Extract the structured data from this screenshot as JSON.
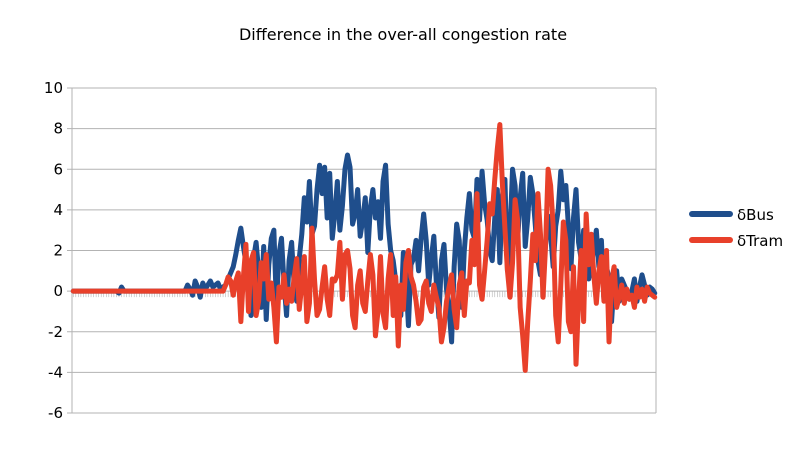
{
  "chart_data": {
    "type": "line",
    "title": "Difference in the over-all congestion rate",
    "xlabel": "",
    "ylabel": "",
    "ylim": [
      -6,
      10
    ],
    "yticks": [
      -6,
      -4,
      -2,
      0,
      2,
      4,
      6,
      8,
      10
    ],
    "grid": true,
    "legend": "right",
    "series": [
      {
        "name": "δBus",
        "color": "#1f4e8c",
        "values": [
          0,
          0,
          0,
          0,
          0,
          0,
          0,
          0,
          0,
          0,
          0,
          0,
          0,
          0,
          0,
          0,
          0,
          0,
          -0.1,
          0.2,
          0,
          0,
          0,
          0,
          0,
          0,
          0,
          0,
          0,
          0,
          0,
          0,
          0,
          0,
          0,
          0,
          0,
          0,
          0,
          0,
          0,
          0,
          0,
          0,
          0,
          0.3,
          0.1,
          -0.2,
          0.5,
          0.2,
          -0.3,
          0.4,
          0.1,
          0.3,
          0.5,
          0.2,
          0.3,
          0.4,
          0.1,
          0.2,
          0.3,
          0.6,
          0.9,
          1.2,
          1.8,
          2.5,
          3.1,
          2.2,
          1.4,
          0.2,
          -1.2,
          1.6,
          2.4,
          1.0,
          -0.8,
          2.2,
          -1.4,
          1.3,
          2.6,
          3.0,
          -0.6,
          1.8,
          2.6,
          0.4,
          -1.2,
          1.5,
          2.4,
          0.3,
          -0.5,
          1.6,
          2.8,
          4.6,
          3.4,
          5.4,
          2.8,
          3.2,
          5.0,
          6.2,
          4.8,
          6.1,
          3.6,
          5.8,
          2.6,
          3.8,
          5.4,
          3.0,
          4.2,
          6.0,
          6.7,
          6.1,
          3.3,
          3.8,
          5.0,
          2.7,
          3.5,
          4.6,
          1.9,
          4.1,
          5.0,
          3.6,
          4.4,
          2.6,
          5.4,
          6.2,
          3.3,
          2.0,
          1.5,
          0.5,
          -0.3,
          -1.2,
          1.9,
          0.7,
          -1.7,
          1.3,
          1.6,
          2.5,
          1.0,
          2.6,
          3.8,
          2.5,
          0.3,
          1.6,
          2.7,
          0.4,
          -1.3,
          1.5,
          2.3,
          0.1,
          -0.9,
          -2.5,
          1.2,
          3.3,
          2.5,
          -0.8,
          2.0,
          3.6,
          4.8,
          3.0,
          2.6,
          5.5,
          3.5,
          5.9,
          4.3,
          3.5,
          2.0,
          1.5,
          3.6,
          5.0,
          1.4,
          4.7,
          5.5,
          1.0,
          2.8,
          6.0,
          5.2,
          2.5,
          4.6,
          5.8,
          2.2,
          3.6,
          5.6,
          4.8,
          3.2,
          1.5,
          0.8,
          1.3,
          2.3,
          3.7,
          2.8,
          1.2,
          3.2,
          4.0,
          5.9,
          4.5,
          5.2,
          3.2,
          1.1,
          3.6,
          5.0,
          2.4,
          1.6,
          3.0,
          2.1,
          0.6,
          1.3,
          2.0,
          3.0,
          1.2,
          2.5,
          -0.4,
          1.2,
          0.6,
          -1.5,
          0.5,
          1.0,
          -0.5,
          0.6,
          0.3,
          0,
          -0.4,
          0,
          0.6,
          -0.5,
          0.2,
          0.8,
          0.3,
          -0.2,
          0.2,
          0.1,
          -0.1
        ]
      },
      {
        "name": "δTram",
        "color": "#e8402a",
        "values": [
          0,
          0,
          0,
          0,
          0,
          0,
          0,
          0,
          0,
          0,
          0,
          0,
          0,
          0,
          0,
          0,
          0,
          0,
          0,
          0,
          0,
          0,
          0,
          0,
          0,
          0,
          0,
          0,
          0,
          0,
          0,
          0,
          0,
          0,
          0,
          0,
          0,
          0,
          0,
          0,
          0,
          0,
          0,
          0,
          0,
          0,
          0,
          0,
          0,
          0,
          0,
          0,
          0,
          0,
          0,
          0,
          0,
          0,
          0,
          0,
          0.3,
          0.7,
          0.5,
          -0.2,
          0.5,
          0.9,
          -1.5,
          0.7,
          2.3,
          -1.0,
          1.5,
          1.9,
          -1.2,
          -0.5,
          1.4,
          0.6,
          1.8,
          -0.4,
          0.4,
          -0.8,
          -2.5,
          0.2,
          -0.3,
          0.8,
          -0.6,
          0.1,
          -0.5,
          0.7,
          1.6,
          -0.9,
          0.3,
          1.7,
          -1.5,
          -0.6,
          3.1,
          0.6,
          -1.2,
          -0.9,
          0.2,
          1.2,
          -0.4,
          -1.2,
          0.6,
          0.5,
          0.8,
          2.4,
          -0.4,
          1.8,
          2.0,
          1.1,
          -1.2,
          -1.8,
          0.3,
          1.0,
          -0.6,
          -1.0,
          0.5,
          1.8,
          0.8,
          -2.2,
          -1.0,
          1.7,
          -1.1,
          -1.8,
          0.6,
          1.8,
          -1.2,
          0.7,
          -2.7,
          0.3,
          -0.9,
          1.4,
          2.0,
          0.7,
          0.3,
          -0.5,
          -1.6,
          -1.4,
          0.2,
          0.5,
          -0.6,
          -1.0,
          0.3,
          -0.3,
          -0.8,
          -2.5,
          -1.8,
          -0.5,
          0.2,
          0.8,
          -0.9,
          -1.8,
          0.3,
          0.9,
          -1.2,
          0.5,
          0.4,
          2.5,
          1.3,
          4.8,
          0.3,
          -0.4,
          1.0,
          2.5,
          4.3,
          3.8,
          5.5,
          7.0,
          8.2,
          5.3,
          3.1,
          1.0,
          -0.3,
          1.4,
          4.5,
          3.5,
          -0.8,
          -2.2,
          -3.9,
          -1.5,
          0.5,
          2.8,
          1.5,
          4.8,
          2.8,
          -0.3,
          2.2,
          6.0,
          5.2,
          3.2,
          -1.2,
          -2.5,
          0.3,
          3.4,
          2.5,
          -1.5,
          -2.0,
          1.2,
          -3.6,
          -0.5,
          2.0,
          -1.5,
          3.8,
          1.3,
          2.8,
          0.8,
          -0.6,
          1.0,
          1.7,
          -0.5,
          2.0,
          -2.5,
          0.5,
          1.2,
          -0.8,
          -0.3,
          0.3,
          -0.6,
          0.1,
          -0.4,
          -0.2,
          -0.8,
          0.2,
          -0.3,
          0.1,
          -0.5,
          0.2,
          -0.1,
          -0.2,
          -0.3
        ]
      }
    ]
  }
}
